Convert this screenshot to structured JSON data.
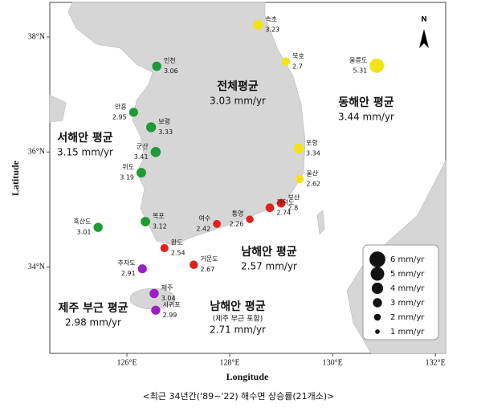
{
  "map": {
    "xlabel": "Longitude",
    "ylabel": "Latitude",
    "xlim": [
      124.5,
      132.2
    ],
    "ylim": [
      32.5,
      38.6
    ],
    "xticks": [
      {
        "value": 126,
        "label": "126°E"
      },
      {
        "value": 128,
        "label": "128°E"
      },
      {
        "value": 130,
        "label": "130°E"
      },
      {
        "value": 132,
        "label": "132°E"
      }
    ],
    "yticks": [
      {
        "value": 34,
        "label": "34°N"
      },
      {
        "value": 36,
        "label": "36°N"
      },
      {
        "value": 38,
        "label": "38°N"
      }
    ],
    "north": "N",
    "regions": [
      {
        "name": "전체평균",
        "value": "3.03 mm/yr"
      },
      {
        "name": "동해안 평균",
        "value": "3.44 mm/yr"
      },
      {
        "name": "서해안 평균",
        "value": "3.15 mm/yr"
      },
      {
        "name": "남해안 평균",
        "value": "2.57 mm/yr"
      },
      {
        "name": "제주 부근 평균",
        "value": "2.98 mm/yr"
      },
      {
        "name": "남해안 평균",
        "note": "(제주 부근 포함)",
        "value": "2.71 mm/yr"
      }
    ],
    "groups": [
      {
        "color": "#f2e414",
        "stations": [
          {
            "name": "속초",
            "rate": 3.23,
            "lon": 128.55,
            "lat": 38.21
          },
          {
            "name": "묵호",
            "rate": 2.7,
            "lon": 129.09,
            "lat": 37.57
          },
          {
            "name": "울릉도",
            "rate": 5.31,
            "lon": 130.86,
            "lat": 37.5
          },
          {
            "name": "포항",
            "rate": 3.34,
            "lon": 129.34,
            "lat": 36.06
          },
          {
            "name": "울산",
            "rate": 2.62,
            "lon": 129.36,
            "lat": 35.53
          }
        ]
      },
      {
        "color": "#e0201b",
        "stations": [
          {
            "name": "부산",
            "rate": 2.8,
            "lon": 129.0,
            "lat": 35.11
          },
          {
            "name": "가덕도",
            "rate": 2.74,
            "lon": 128.78,
            "lat": 35.03
          },
          {
            "name": "통영",
            "rate": 2.26,
            "lon": 128.39,
            "lat": 34.83
          },
          {
            "name": "여수",
            "rate": 2.42,
            "lon": 127.75,
            "lat": 34.75
          },
          {
            "name": "거문도",
            "rate": 2.67,
            "lon": 127.3,
            "lat": 34.04
          },
          {
            "name": "완도",
            "rate": 2.54,
            "lon": 126.73,
            "lat": 34.33
          }
        ]
      },
      {
        "color": "#9b1fc9",
        "stations": [
          {
            "name": "추자도",
            "rate": 2.91,
            "lon": 126.3,
            "lat": 33.97
          },
          {
            "name": "제주",
            "rate": 3.04,
            "lon": 126.53,
            "lat": 33.54
          },
          {
            "name": "서귀포",
            "rate": 2.99,
            "lon": 126.56,
            "lat": 33.25
          }
        ]
      },
      {
        "color": "#1e9a36",
        "stations": [
          {
            "name": "목포",
            "rate": 3.12,
            "lon": 126.36,
            "lat": 34.79
          },
          {
            "name": "흑산도",
            "rate": 3.01,
            "lon": 125.44,
            "lat": 34.69
          },
          {
            "name": "위도",
            "rate": 3.19,
            "lon": 126.28,
            "lat": 35.64
          },
          {
            "name": "군산",
            "rate": 3.41,
            "lon": 126.56,
            "lat": 36.0
          },
          {
            "name": "보령",
            "rate": 3.33,
            "lon": 126.47,
            "lat": 36.43
          },
          {
            "name": "안흥",
            "rate": 2.95,
            "lon": 126.13,
            "lat": 36.69
          },
          {
            "name": "인천",
            "rate": 3.06,
            "lon": 126.58,
            "lat": 37.49
          }
        ]
      }
    ],
    "legend": [
      {
        "value": 6,
        "label": "6 mm/yr"
      },
      {
        "value": 5,
        "label": "5 mm/yr"
      },
      {
        "value": 4,
        "label": "4 mm/yr"
      },
      {
        "value": 3,
        "label": "3 mm/yr"
      },
      {
        "value": 2,
        "label": "2 mm/yr"
      },
      {
        "value": 1,
        "label": "1 mm/yr"
      }
    ],
    "caption": "<최근 34년간('89~'22) 해수면 상승률(21개소)>"
  }
}
